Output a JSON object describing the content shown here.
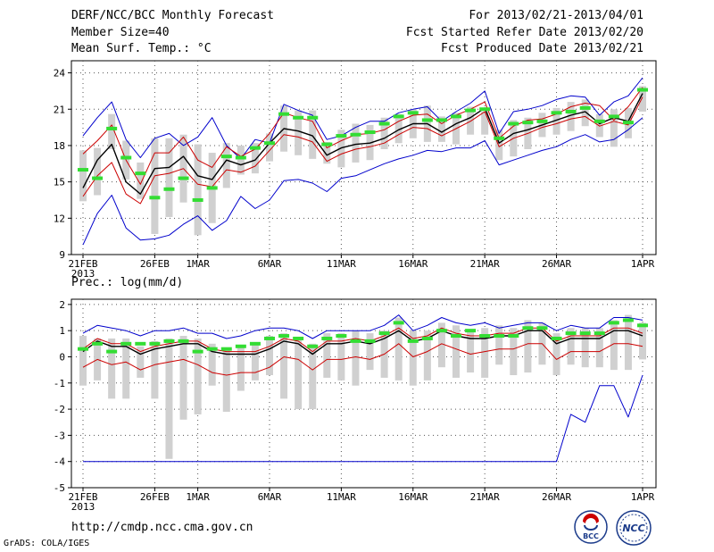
{
  "header": {
    "title": "DERF/NCC/BCC Monthly Forecast",
    "member_size": "Member Size=40",
    "variable_top": "Mean Surf. Temp.: °C",
    "period": "For 2013/02/21-2013/04/01",
    "started": "Fcst Started Refer Date 2013/02/20",
    "produced": "Fcst Produced Date 2013/02/21"
  },
  "footer": {
    "url": "http://cmdp.ncc.cma.gov.cn",
    "credit": "GrADS: COLA/IGES",
    "logo_bcc": "BCC",
    "logo_ncc": "NCC"
  },
  "colors": {
    "max_line": "#0000cc",
    "upper_line": "#cc0000",
    "mean_line": "#000000",
    "median_bar": "#33dd33",
    "spread_bar": "#d0d0d0",
    "grid": "#555555"
  },
  "chart_data": [
    {
      "type": "line",
      "title": "Mean Surf. Temp.: °C",
      "xlabel": "",
      "ylabel": "",
      "x_tick_labels": [
        "21FEB\n2013",
        "26FEB",
        "1MAR",
        "6MAR",
        "11MAR",
        "16MAR",
        "21MAR",
        "26MAR",
        "1APR"
      ],
      "x_tick_days": [
        0,
        5,
        8,
        13,
        18,
        23,
        28,
        33,
        39
      ],
      "ylim": [
        9,
        25
      ],
      "y_ticks": [
        9,
        12,
        15,
        18,
        21,
        24
      ],
      "grid": true,
      "x_days": [
        0,
        1,
        2,
        3,
        4,
        5,
        6,
        7,
        8,
        9,
        10,
        11,
        12,
        13,
        14,
        15,
        16,
        17,
        18,
        19,
        20,
        21,
        22,
        23,
        24,
        25,
        26,
        27,
        28,
        29,
        30,
        31,
        32,
        33,
        34,
        35,
        36,
        37,
        38,
        39
      ],
      "series": [
        {
          "name": "ensemble max",
          "color": "#0000cc",
          "values": [
            18.8,
            20.3,
            21.6,
            18.5,
            17.0,
            18.6,
            19.0,
            18.0,
            18.7,
            20.3,
            18.0,
            16.9,
            18.5,
            18.2,
            21.4,
            20.9,
            20.5,
            18.5,
            18.8,
            19.5,
            20.0,
            20.0,
            20.7,
            21.0,
            21.2,
            20.0,
            20.8,
            21.5,
            22.5,
            19.0,
            20.8,
            21.0,
            21.3,
            21.8,
            22.1,
            22.0,
            20.5,
            21.6,
            22.1,
            23.6
          ]
        },
        {
          "name": "ensemble min",
          "color": "#0000cc",
          "values": [
            9.8,
            12.4,
            13.9,
            11.2,
            10.2,
            10.3,
            10.6,
            11.5,
            12.2,
            11.0,
            11.8,
            13.8,
            12.8,
            13.5,
            15.1,
            15.2,
            14.9,
            14.2,
            15.3,
            15.5,
            16.0,
            16.5,
            16.9,
            17.2,
            17.6,
            17.5,
            17.8,
            17.8,
            18.4,
            16.4,
            16.8,
            17.2,
            17.6,
            17.9,
            18.5,
            18.9,
            18.3,
            18.5,
            19.3,
            20.3
          ]
        },
        {
          "name": "upper",
          "color": "#cc0000",
          "values": [
            17.3,
            18.4,
            19.7,
            16.8,
            14.8,
            17.4,
            17.4,
            18.7,
            16.8,
            16.2,
            17.9,
            17.1,
            17.7,
            19.0,
            20.7,
            20.3,
            20.0,
            17.8,
            18.4,
            18.9,
            19.0,
            19.3,
            20.0,
            20.5,
            20.6,
            19.8,
            20.5,
            21.0,
            21.6,
            18.6,
            19.6,
            20.1,
            20.2,
            20.6,
            21.2,
            21.5,
            21.3,
            20.1,
            21.2,
            22.8
          ]
        },
        {
          "name": "ensemble mean",
          "color": "#000000",
          "values": [
            14.5,
            16.8,
            18.1,
            15.0,
            14.0,
            16.1,
            16.2,
            17.1,
            15.5,
            15.2,
            16.8,
            16.4,
            16.8,
            18.2,
            19.4,
            19.2,
            18.8,
            17.2,
            17.8,
            18.1,
            18.2,
            18.6,
            19.3,
            19.8,
            19.8,
            19.1,
            19.8,
            20.3,
            21.1,
            18.2,
            19.0,
            19.3,
            19.7,
            20.1,
            20.5,
            20.8,
            19.8,
            20.3,
            20.0,
            22.3
          ]
        },
        {
          "name": "lower",
          "color": "#cc0000",
          "values": [
            13.8,
            15.5,
            16.6,
            14.0,
            13.2,
            15.5,
            15.7,
            16.1,
            14.8,
            14.6,
            16.0,
            15.8,
            16.3,
            17.6,
            18.9,
            18.7,
            18.3,
            16.7,
            17.3,
            17.7,
            17.9,
            18.2,
            18.9,
            19.5,
            19.4,
            18.8,
            19.4,
            20.0,
            20.8,
            17.9,
            18.6,
            19.0,
            19.5,
            19.8,
            20.2,
            20.4,
            19.6,
            20.0,
            19.7,
            22.0
          ]
        },
        {
          "name": "spread high",
          "color": "#d0d0d0",
          "values": [
            17.6,
            17.8,
            20.6,
            18.4,
            16.6,
            18.6,
            18.6,
            18.9,
            18.1,
            17.4,
            18.2,
            18.0,
            18.2,
            19.0,
            21.3,
            20.9,
            20.9,
            18.3,
            19.3,
            19.8,
            19.7,
            20.3,
            20.6,
            21.0,
            21.3,
            20.4,
            20.7,
            21.2,
            20.8,
            19.3,
            20.1,
            20.3,
            20.7,
            21.1,
            21.6,
            21.8,
            20.6,
            21.0,
            21.1,
            22.9
          ]
        },
        {
          "name": "spread low",
          "color": "#d0d0d0",
          "values": [
            13.4,
            13.9,
            17.7,
            15.2,
            13.6,
            10.7,
            12.1,
            13.3,
            10.6,
            11.6,
            14.5,
            15.6,
            15.7,
            16.7,
            17.5,
            17.2,
            16.9,
            16.5,
            16.2,
            16.6,
            16.8,
            17.7,
            18.2,
            18.6,
            18.3,
            18.3,
            18.1,
            18.9,
            18.9,
            16.8,
            17.1,
            17.7,
            18.7,
            18.9,
            19.2,
            19.6,
            18.7,
            17.9,
            18.6,
            20.8
          ]
        },
        {
          "name": "median",
          "color": "#33dd33",
          "values": [
            16.0,
            15.3,
            19.4,
            17.0,
            15.7,
            13.7,
            14.4,
            15.3,
            13.5,
            14.5,
            17.1,
            17.0,
            17.8,
            18.2,
            20.6,
            20.3,
            20.3,
            18.1,
            18.8,
            18.9,
            19.1,
            19.8,
            20.4,
            20.7,
            20.1,
            20.1,
            20.4,
            20.9,
            21.0,
            18.6,
            19.8,
            19.9,
            20.0,
            20.7,
            20.8,
            21.1,
            20.0,
            20.4,
            19.9,
            22.6
          ]
        }
      ]
    },
    {
      "type": "line",
      "title": "Prec.: log(mm/d)",
      "xlabel": "",
      "ylabel": "",
      "x_tick_labels": [
        "21FEB\n2013",
        "26FEB",
        "1MAR",
        "6MAR",
        "11MAR",
        "16MAR",
        "21MAR",
        "26MAR",
        "1APR"
      ],
      "x_tick_days": [
        0,
        5,
        8,
        13,
        18,
        23,
        28,
        33,
        39
      ],
      "ylim": [
        -5,
        2.2
      ],
      "y_ticks": [
        -5,
        -4,
        -3,
        -2,
        -1,
        0,
        1,
        2
      ],
      "grid": true,
      "x_days": [
        0,
        1,
        2,
        3,
        4,
        5,
        6,
        7,
        8,
        9,
        10,
        11,
        12,
        13,
        14,
        15,
        16,
        17,
        18,
        19,
        20,
        21,
        22,
        23,
        24,
        25,
        26,
        27,
        28,
        29,
        30,
        31,
        32,
        33,
        34,
        35,
        36,
        37,
        38,
        39
      ],
      "series": [
        {
          "name": "ensemble max",
          "color": "#0000cc",
          "values": [
            0.9,
            1.2,
            1.1,
            1.0,
            0.8,
            1.0,
            1.0,
            1.1,
            0.9,
            0.9,
            0.7,
            0.8,
            1.0,
            1.1,
            1.1,
            1.0,
            0.7,
            1.0,
            1.0,
            1.0,
            1.0,
            1.2,
            1.6,
            1.0,
            1.2,
            1.5,
            1.3,
            1.2,
            1.3,
            1.1,
            1.2,
            1.3,
            1.3,
            1.0,
            1.2,
            1.1,
            1.1,
            1.5,
            1.5,
            1.4
          ]
        },
        {
          "name": "ensemble min",
          "color": "#0000cc",
          "values": [
            -4,
            -4,
            -4,
            -4,
            -4,
            -4,
            -4,
            -4,
            -4,
            -4,
            -4,
            -4,
            -4,
            -4,
            -4,
            -4,
            -4,
            -4,
            -4,
            -4,
            -4,
            -4,
            -4,
            -4,
            -4,
            -4,
            -4,
            -4,
            -4,
            -4,
            -4,
            -4,
            -4,
            -4,
            -2.2,
            -2.5,
            -1.1,
            -1.1,
            -2.3,
            -0.7
          ]
        },
        {
          "name": "upper",
          "color": "#cc0000",
          "values": [
            0.3,
            0.7,
            0.5,
            0.5,
            0.2,
            0.4,
            0.5,
            0.6,
            0.6,
            0.3,
            0.2,
            0.2,
            0.2,
            0.4,
            0.7,
            0.6,
            0.2,
            0.6,
            0.6,
            0.7,
            0.6,
            0.8,
            1.1,
            0.7,
            0.8,
            1.1,
            0.9,
            0.8,
            0.8,
            0.9,
            0.9,
            1.1,
            1.1,
            0.6,
            0.8,
            0.8,
            0.8,
            1.1,
            1.1,
            0.9
          ]
        },
        {
          "name": "ensemble mean",
          "color": "#000000",
          "values": [
            0.2,
            0.6,
            0.4,
            0.4,
            0.1,
            0.3,
            0.4,
            0.5,
            0.5,
            0.2,
            0.1,
            0.1,
            0.1,
            0.3,
            0.6,
            0.5,
            0.1,
            0.5,
            0.5,
            0.6,
            0.5,
            0.7,
            1.0,
            0.6,
            0.7,
            1.0,
            0.8,
            0.7,
            0.7,
            0.8,
            0.8,
            1.0,
            1.0,
            0.5,
            0.7,
            0.7,
            0.7,
            1.0,
            1.0,
            0.8
          ]
        },
        {
          "name": "lower",
          "color": "#cc0000",
          "values": [
            -0.4,
            -0.1,
            -0.3,
            -0.2,
            -0.5,
            -0.3,
            -0.2,
            -0.1,
            -0.3,
            -0.6,
            -0.7,
            -0.6,
            -0.6,
            -0.4,
            0.0,
            -0.1,
            -0.5,
            -0.1,
            -0.1,
            0.0,
            -0.1,
            0.1,
            0.5,
            0.0,
            0.2,
            0.5,
            0.3,
            0.1,
            0.2,
            0.3,
            0.3,
            0.5,
            0.5,
            -0.1,
            0.2,
            0.2,
            0.2,
            0.5,
            0.5,
            0.4
          ]
        },
        {
          "name": "spread high",
          "color": "#d0d0d0",
          "values": [
            0.8,
            0.7,
            0.7,
            0.7,
            0.4,
            0.6,
            0.7,
            0.8,
            0.7,
            0.5,
            0.3,
            0.4,
            0.5,
            0.8,
            0.9,
            0.7,
            0.5,
            0.9,
            0.9,
            1.0,
            0.9,
            1.0,
            1.5,
            1.0,
            1.0,
            1.3,
            1.2,
            1.0,
            1.1,
            1.2,
            1.1,
            1.4,
            1.3,
            0.9,
            1.1,
            1.1,
            1.1,
            1.4,
            1.6,
            1.3
          ]
        },
        {
          "name": "spread low",
          "color": "#d0d0d0",
          "values": [
            -1.1,
            -0.9,
            -1.6,
            -1.6,
            -0.8,
            -1.6,
            -3.9,
            -2.4,
            -2.2,
            -1.1,
            -2.1,
            -1.3,
            -0.9,
            -0.7,
            -1.6,
            -2.0,
            -2.0,
            -0.8,
            -0.9,
            -1.1,
            -0.5,
            -0.8,
            -0.9,
            -1.1,
            -0.9,
            -0.4,
            -0.8,
            -0.6,
            -0.8,
            -0.3,
            -0.7,
            -0.6,
            -0.3,
            -0.7,
            -0.3,
            -0.4,
            -0.4,
            -0.5,
            -0.5,
            -0.1
          ]
        },
        {
          "name": "median",
          "color": "#33dd33",
          "values": [
            0.3,
            0.5,
            0.2,
            0.5,
            0.5,
            0.5,
            0.6,
            0.6,
            0.2,
            0.3,
            0.3,
            0.4,
            0.5,
            0.7,
            0.8,
            0.7,
            0.4,
            0.7,
            0.8,
            0.6,
            0.6,
            0.9,
            1.3,
            0.6,
            0.7,
            1.0,
            0.8,
            1.0,
            0.8,
            0.8,
            0.8,
            1.1,
            1.1,
            0.7,
            0.9,
            0.9,
            0.9,
            1.3,
            1.4,
            1.2
          ]
        }
      ]
    }
  ]
}
